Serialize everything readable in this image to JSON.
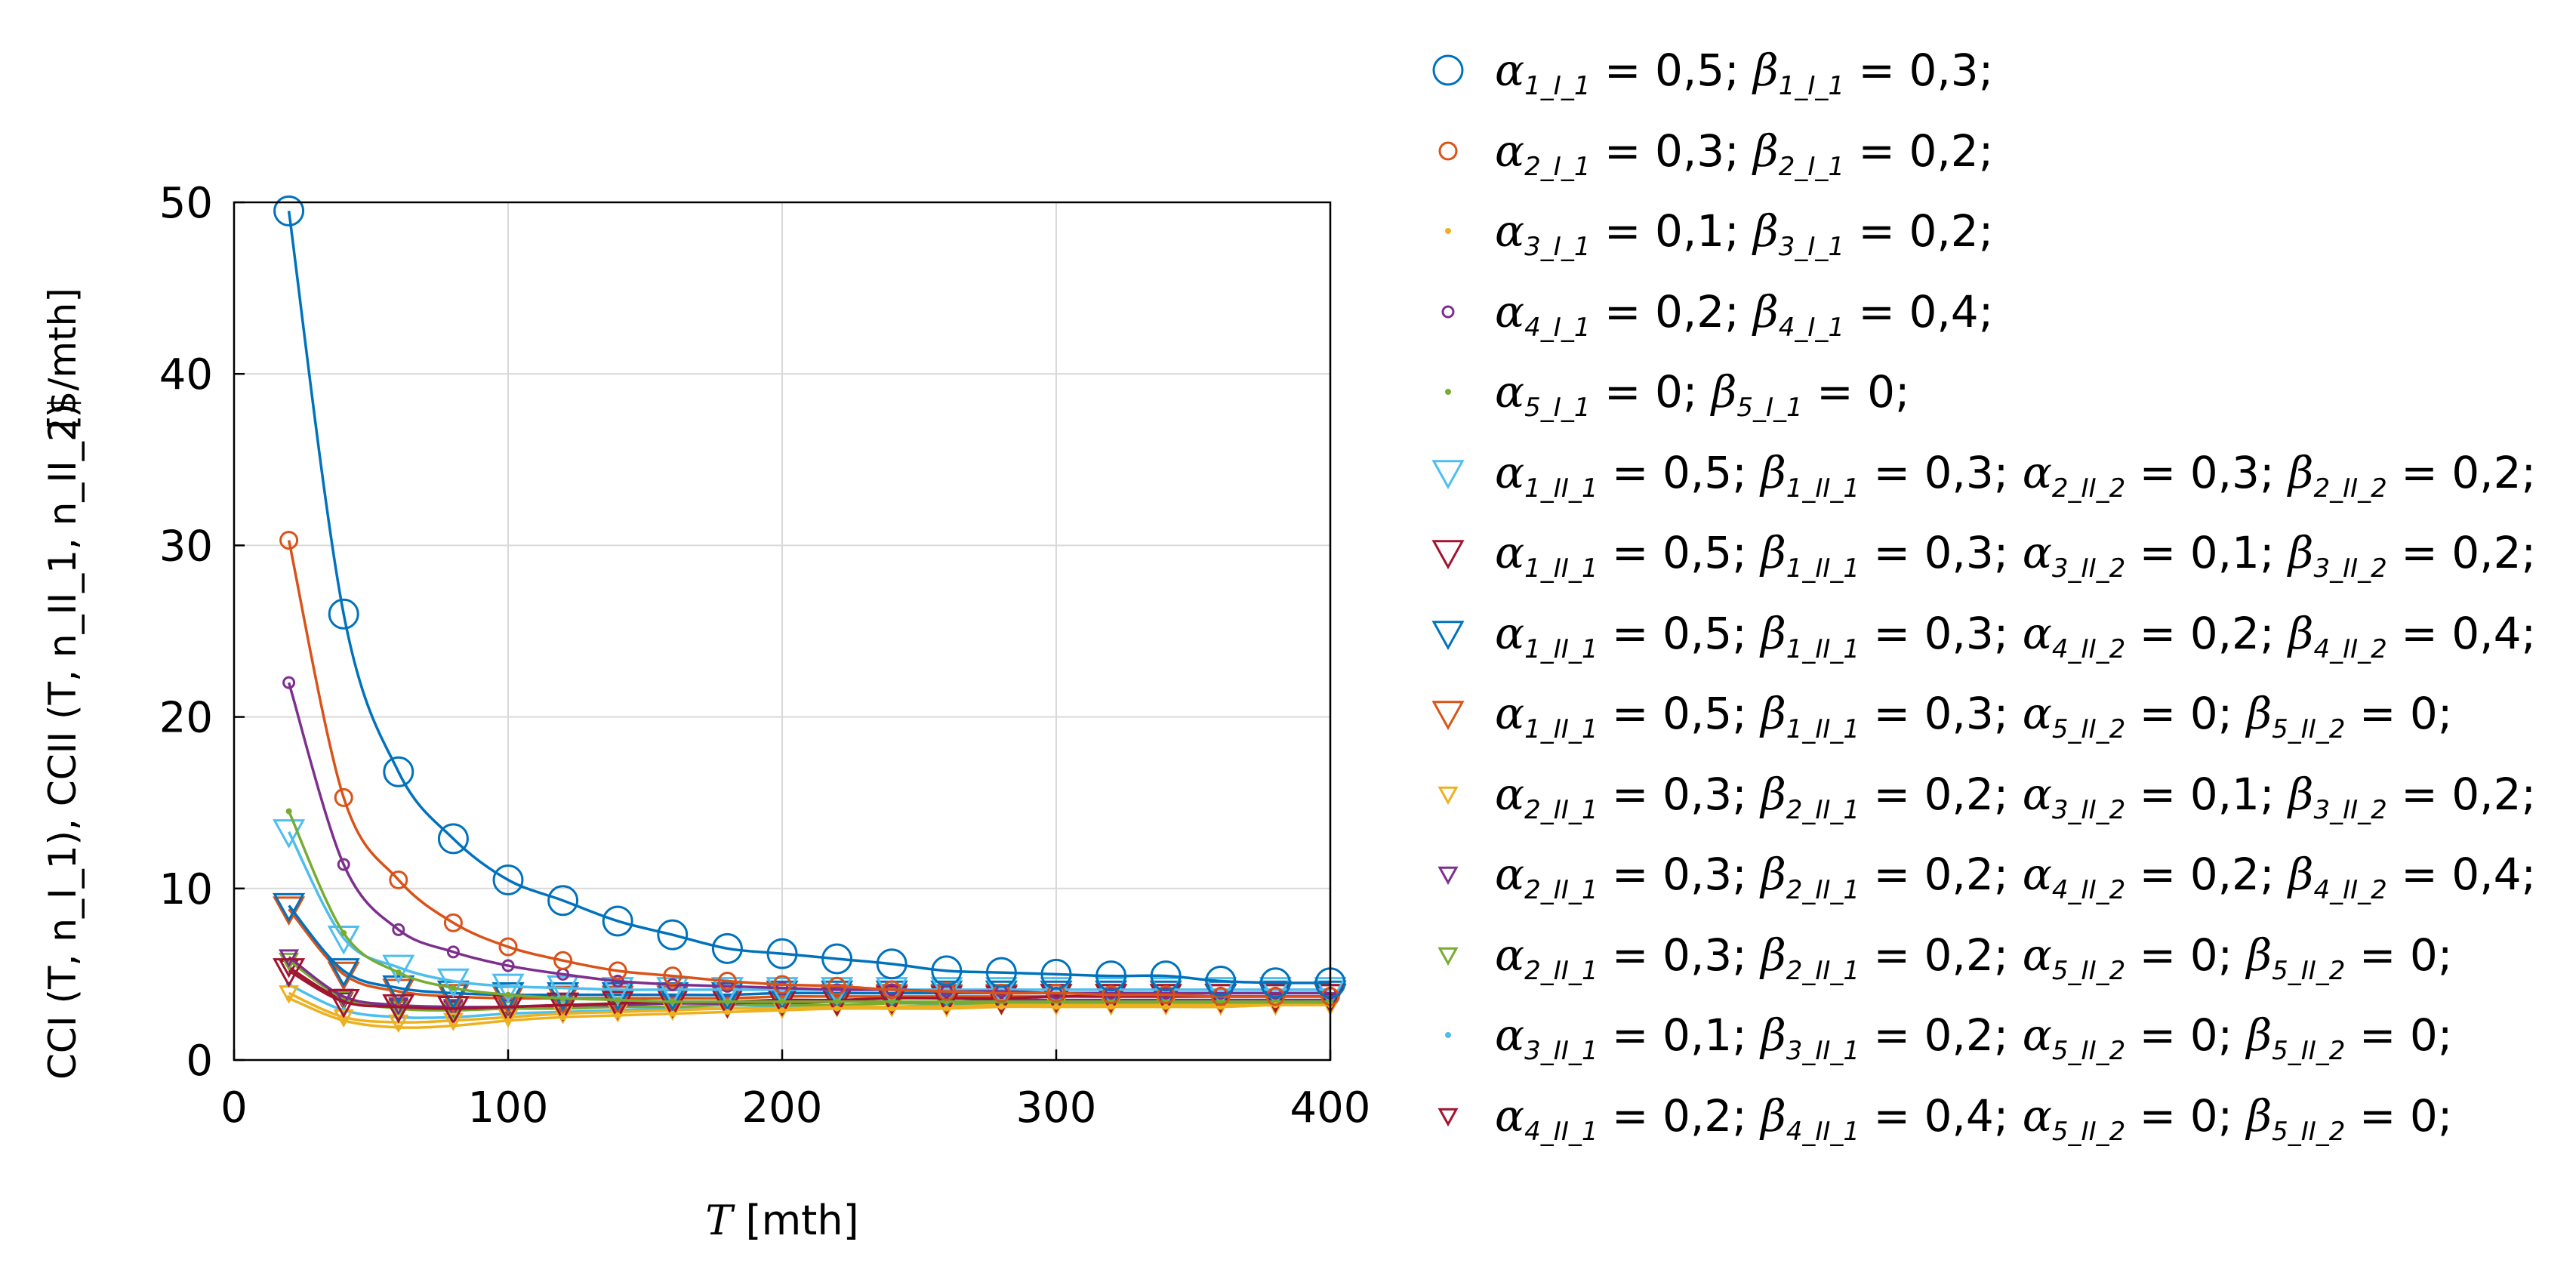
{
  "chart_data": {
    "type": "line",
    "title": "",
    "xlabel": "T [mth]",
    "ylabel": "CCI (T, n_I_1), CCII (T, n_II_1, n_II_2) [$/mth]",
    "xlim": [
      0,
      400
    ],
    "ylim": [
      0,
      50
    ],
    "xticks": [
      0,
      100,
      200,
      300,
      400
    ],
    "yticks": [
      0,
      10,
      20,
      30,
      40,
      50
    ],
    "grid": true,
    "legend_position": "outside-right",
    "x": [
      20,
      40,
      60,
      80,
      100,
      120,
      140,
      160,
      180,
      200,
      220,
      240,
      260,
      280,
      300,
      320,
      340,
      360,
      380,
      400
    ],
    "series": [
      {
        "name": "α1_I_1 = 0,5; β1_I_1 = 0,3;",
        "color": "#0072BD",
        "marker": "circle-large",
        "values": [
          49.5,
          26.0,
          16.8,
          12.9,
          10.5,
          9.3,
          8.1,
          7.3,
          6.5,
          6.2,
          5.9,
          5.6,
          5.2,
          5.1,
          5.0,
          4.9,
          4.9,
          4.6,
          4.5,
          4.5
        ]
      },
      {
        "name": "α2_I_1 = 0,3; β2_I_1 = 0,2;",
        "color": "#D95319",
        "marker": "circle-medium",
        "values": [
          30.3,
          15.3,
          10.5,
          8.0,
          6.6,
          5.8,
          5.2,
          4.9,
          4.6,
          4.4,
          4.3,
          4.1,
          4.0,
          3.9,
          3.9,
          3.8,
          3.8,
          3.7,
          3.7,
          3.7
        ]
      },
      {
        "name": "α3_I_1 = 0,1; β3_I_1 = 0,2;",
        "color": "#EDB120",
        "marker": "dot",
        "values": [
          3.6,
          2.3,
          1.9,
          2.0,
          2.3,
          2.5,
          2.6,
          2.7,
          2.8,
          2.9,
          3.0,
          3.0,
          3.0,
          3.1,
          3.1,
          3.1,
          3.1,
          3.1,
          3.2,
          3.2
        ]
      },
      {
        "name": "α4_I_1 = 0,2; β4_I_1 = 0,4;",
        "color": "#7E2F8E",
        "marker": "circle-small",
        "values": [
          22.0,
          11.4,
          7.6,
          6.3,
          5.5,
          5.0,
          4.6,
          4.4,
          4.3,
          4.2,
          4.1,
          4.1,
          4.0,
          4.0,
          3.9,
          3.9,
          3.9,
          3.9,
          3.9,
          3.9
        ]
      },
      {
        "name": "α5_I_1 = 0; β5_I_1 = 0;",
        "color": "#77AC30",
        "marker": "dot",
        "values": [
          14.5,
          7.4,
          5.1,
          4.2,
          3.8,
          3.6,
          3.5,
          3.4,
          3.4,
          3.4,
          3.4,
          3.4,
          3.4,
          3.4,
          3.4,
          3.4,
          3.4,
          3.4,
          3.4,
          3.4
        ]
      },
      {
        "name": "α1_II_1 = 0,5; β1_II_1 = 0,3; α2_II_2 = 0,3; β2_II_2 = 0,2;",
        "color": "#4DBEEE",
        "marker": "tri-large",
        "values": [
          13.3,
          7.1,
          5.4,
          4.6,
          4.3,
          4.2,
          4.1,
          4.1,
          4.1,
          4.1,
          4.1,
          4.1,
          4.1,
          4.1,
          4.1,
          4.1,
          4.1,
          4.1,
          4.1,
          4.1
        ]
      },
      {
        "name": "α1_II_1 = 0,5; β1_II_1 = 0,3; α3_II_2 = 0,1; β3_II_2 = 0,2;",
        "color": "#A2142F",
        "marker": "tri-large",
        "values": [
          5.2,
          3.4,
          3.1,
          3.0,
          3.1,
          3.2,
          3.3,
          3.4,
          3.4,
          3.5,
          3.5,
          3.6,
          3.6,
          3.6,
          3.7,
          3.7,
          3.7,
          3.7,
          3.7,
          3.7
        ]
      },
      {
        "name": "α1_II_1 = 0,5; β1_II_1 = 0,3; α4_II_2 = 0,2; β4_II_2 = 0,4;",
        "color": "#0072BD",
        "marker": "tri-large",
        "values": [
          9.0,
          5.2,
          4.2,
          3.9,
          3.8,
          3.8,
          3.8,
          3.8,
          3.8,
          3.9,
          3.9,
          3.9,
          3.9,
          3.9,
          3.9,
          3.9,
          3.9,
          3.9,
          3.9,
          3.9
        ]
      },
      {
        "name": "α1_II_1 = 0,5; β1_II_1 = 0,3; α5_II_2 = 0; β5_II_2 = 0;",
        "color": "#D95319",
        "marker": "tri-large",
        "values": [
          8.8,
          5.0,
          4.0,
          3.7,
          3.6,
          3.6,
          3.6,
          3.6,
          3.6,
          3.7,
          3.7,
          3.7,
          3.7,
          3.7,
          3.7,
          3.7,
          3.7,
          3.7,
          3.7,
          3.7
        ]
      },
      {
        "name": "α2_II_1 = 0,3; β2_II_1 = 0,2; α3_II_2 = 0,1; β3_II_2 = 0,2;",
        "color": "#EDB120",
        "marker": "tri-small",
        "values": [
          3.9,
          2.5,
          2.2,
          2.3,
          2.5,
          2.7,
          2.8,
          2.9,
          3.0,
          3.0,
          3.1,
          3.1,
          3.1,
          3.2,
          3.2,
          3.2,
          3.2,
          3.2,
          3.2,
          3.2
        ]
      },
      {
        "name": "α2_II_1 = 0,3; β2_II_1 = 0,2; α4_II_2 = 0,2; β4_II_2 = 0,4;",
        "color": "#7E2F8E",
        "marker": "tri-small",
        "values": [
          6.0,
          3.7,
          3.2,
          3.1,
          3.1,
          3.2,
          3.2,
          3.3,
          3.3,
          3.4,
          3.4,
          3.4,
          3.4,
          3.5,
          3.5,
          3.5,
          3.5,
          3.5,
          3.5,
          3.5
        ]
      },
      {
        "name": "α2_II_1 = 0,3; β2_II_1 = 0,2; α5_II_2 = 0; β5_II_2 = 0;",
        "color": "#77AC30",
        "marker": "tri-small",
        "values": [
          5.8,
          3.6,
          3.0,
          2.9,
          3.0,
          3.0,
          3.1,
          3.1,
          3.2,
          3.2,
          3.2,
          3.3,
          3.3,
          3.3,
          3.3,
          3.3,
          3.3,
          3.3,
          3.3,
          3.3
        ]
      },
      {
        "name": "α3_II_1 = 0,1; β3_II_1 = 0,2; α5_II_2 = 0; β5_II_2 = 0;",
        "color": "#4DBEEE",
        "marker": "dot",
        "values": [
          4.4,
          2.9,
          2.5,
          2.5,
          2.7,
          2.8,
          2.9,
          3.0,
          3.0,
          3.1,
          3.1,
          3.1,
          3.2,
          3.2,
          3.2,
          3.2,
          3.2,
          3.2,
          3.2,
          3.2
        ]
      },
      {
        "name": "α4_II_1 = 0,2; β4_II_1 = 0,4; α5_II_2 = 0; β5_II_2 = 0;",
        "color": "#A2142F",
        "marker": "tri-small",
        "values": [
          5.4,
          3.5,
          3.1,
          3.0,
          3.1,
          3.1,
          3.2,
          3.3,
          3.3,
          3.3,
          3.4,
          3.4,
          3.4,
          3.4,
          3.4,
          3.4,
          3.4,
          3.4,
          3.4,
          3.4
        ]
      }
    ]
  },
  "legend": {
    "labels": [
      [
        [
          "a",
          "1_I_1",
          " = 0,5; "
        ],
        [
          "b",
          "1_I_1",
          " = 0,3;"
        ]
      ],
      [
        [
          "a",
          "2_I_1",
          " = 0,3; "
        ],
        [
          "b",
          "2_I_1",
          " = 0,2;"
        ]
      ],
      [
        [
          "a",
          "3_I_1",
          " = 0,1; "
        ],
        [
          "b",
          "3_I_1",
          " = 0,2;"
        ]
      ],
      [
        [
          "a",
          "4_I_1",
          " = 0,2; "
        ],
        [
          "b",
          "4_I_1",
          " = 0,4;"
        ]
      ],
      [
        [
          "a",
          "5_I_1",
          " = 0; "
        ],
        [
          "b",
          "5_I_1",
          " = 0;"
        ]
      ],
      [
        [
          "a",
          "1_II_1",
          " = 0,5; "
        ],
        [
          "b",
          "1_II_1",
          " = 0,3; "
        ],
        [
          "a",
          "2_II_2",
          " = 0,3; "
        ],
        [
          "b",
          "2_II_2",
          " = 0,2;"
        ]
      ],
      [
        [
          "a",
          "1_II_1",
          " = 0,5; "
        ],
        [
          "b",
          "1_II_1",
          " = 0,3; "
        ],
        [
          "a",
          "3_II_2",
          " = 0,1; "
        ],
        [
          "b",
          "3_II_2",
          " = 0,2;"
        ]
      ],
      [
        [
          "a",
          "1_II_1",
          " = 0,5; "
        ],
        [
          "b",
          "1_II_1",
          " = 0,3; "
        ],
        [
          "a",
          "4_II_2",
          " = 0,2; "
        ],
        [
          "b",
          "4_II_2",
          " = 0,4;"
        ]
      ],
      [
        [
          "a",
          "1_II_1",
          " = 0,5; "
        ],
        [
          "b",
          "1_II_1",
          " = 0,3; "
        ],
        [
          "a",
          "5_II_2",
          " = 0; "
        ],
        [
          "b",
          "5_II_2",
          " = 0;"
        ]
      ],
      [
        [
          "a",
          "2_II_1",
          " = 0,3; "
        ],
        [
          "b",
          "2_II_1",
          " = 0,2; "
        ],
        [
          "a",
          "3_II_2",
          " = 0,1; "
        ],
        [
          "b",
          "3_II_2",
          " = 0,2;"
        ]
      ],
      [
        [
          "a",
          "2_II_1",
          " = 0,3; "
        ],
        [
          "b",
          "2_II_1",
          " = 0,2; "
        ],
        [
          "a",
          "4_II_2",
          " = 0,2; "
        ],
        [
          "b",
          "4_II_2",
          " = 0,4;"
        ]
      ],
      [
        [
          "a",
          "2_II_1",
          " = 0,3; "
        ],
        [
          "b",
          "2_II_1",
          " = 0,2; "
        ],
        [
          "a",
          "5_II_2",
          " = 0; "
        ],
        [
          "b",
          "5_II_2",
          " = 0;"
        ]
      ],
      [
        [
          "a",
          "3_II_1",
          " = 0,1; "
        ],
        [
          "b",
          "3_II_1",
          " = 0,2; "
        ],
        [
          "a",
          "5_II_2",
          " = 0; "
        ],
        [
          "b",
          "5_II_2",
          " = 0;"
        ]
      ],
      [
        [
          "a",
          "4_II_1",
          " = 0,2; "
        ],
        [
          "b",
          "4_II_1",
          " = 0,4; "
        ],
        [
          "a",
          "5_II_2",
          " = 0; "
        ],
        [
          "b",
          "5_II_2",
          " = 0;"
        ]
      ]
    ]
  },
  "labels": {
    "xaxis": "T [mth]",
    "yaxis_main": "CCI (T, n_I_1), CCII (T, n_II_1, n_II_2)",
    "yaxis_unit": "[$/mth]"
  }
}
